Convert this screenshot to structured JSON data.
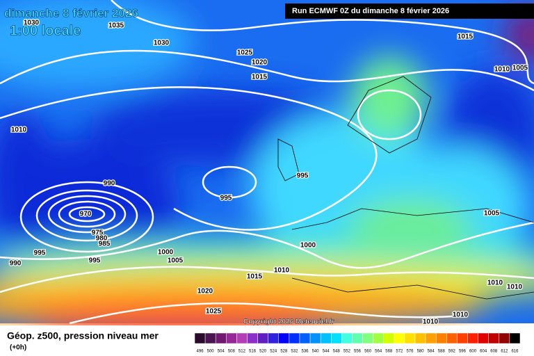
{
  "header": {
    "date": "dimanche 8 février 2026",
    "time": "1:00 locale",
    "run": "Run ECMWF 0Z du dimanche 8 février 2026"
  },
  "map": {
    "isobar_labels": [
      "1030",
      "1035",
      "1030",
      "1025",
      "1020",
      "1015",
      "1015",
      "1010",
      "1005",
      "1010",
      "990",
      "995",
      "995",
      "970",
      "975",
      "980",
      "985",
      "995",
      "990",
      "995",
      "1000",
      "1005",
      "1000",
      "1010",
      "1015",
      "1005",
      "1010",
      "1010",
      "1020",
      "1025",
      "1010",
      "1010"
    ],
    "copyright": "Copyright 2026 Meteociel.fr"
  },
  "legend": {
    "title": "Géop. z500, pression niveau mer",
    "step": "(+0h)",
    "labels": [
      "496",
      "500",
      "504",
      "508",
      "512",
      "516",
      "520",
      "524",
      "528",
      "532",
      "536",
      "540",
      "544",
      "548",
      "552",
      "556",
      "560",
      "564",
      "568",
      "572",
      "576",
      "580",
      "584",
      "588",
      "592",
      "596",
      "600",
      "604",
      "608",
      "612",
      "616"
    ],
    "colors": [
      "#2a0a2a",
      "#4a1450",
      "#701870",
      "#962896",
      "#b43cb4",
      "#8a30c8",
      "#6020c0",
      "#3020e0",
      "#0000ff",
      "#0030ff",
      "#0060ff",
      "#0090ff",
      "#00c0ff",
      "#00e0ff",
      "#40ffe0",
      "#60ffb0",
      "#80ff80",
      "#a0ff40",
      "#d0ff00",
      "#ffff00",
      "#ffe000",
      "#ffc000",
      "#ffa000",
      "#ff8000",
      "#ff6000",
      "#ff4000",
      "#ff2000",
      "#e00000",
      "#c00000",
      "#900000",
      "#000000"
    ]
  }
}
